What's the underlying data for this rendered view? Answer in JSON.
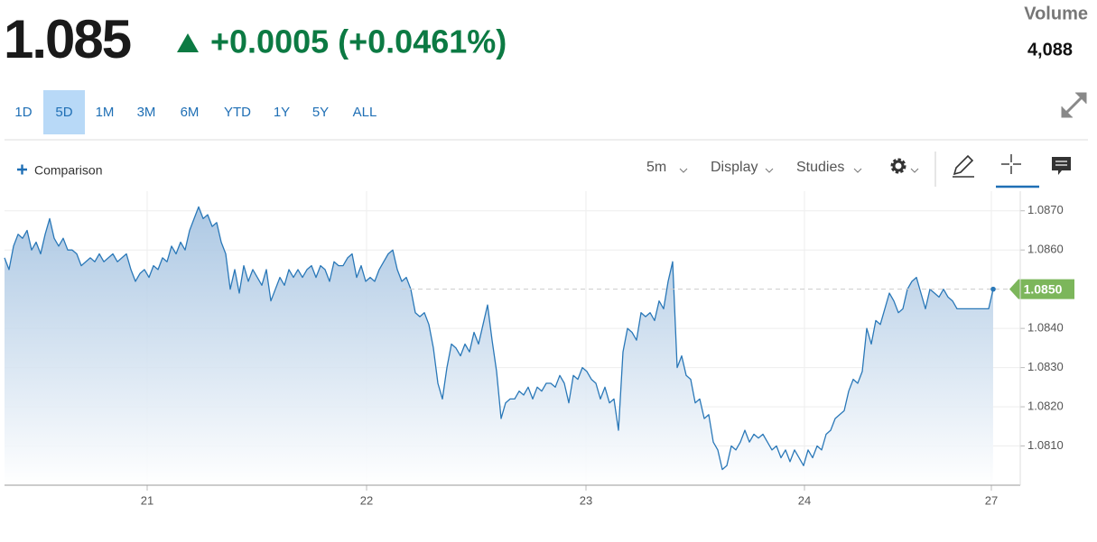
{
  "header": {
    "price": "1.085",
    "change": "+0.0005 (+0.0461%)",
    "volume_label": "Volume",
    "volume": "4,088"
  },
  "range_buttons": [
    "1D",
    "5D",
    "1M",
    "3M",
    "6M",
    "YTD",
    "1Y",
    "5Y",
    "ALL"
  ],
  "selected_range_index": 1,
  "toolbar": {
    "comparison": "Comparison",
    "interval": "5m",
    "display": "Display",
    "studies": "Studies"
  },
  "chart_data": {
    "type": "line",
    "color": "#2a78b8",
    "values": [
      1.0858,
      1.0855,
      1.0861,
      1.0864,
      1.0863,
      1.0865,
      1.086,
      1.0862,
      1.0859,
      1.0864,
      1.0868,
      1.0863,
      1.0861,
      1.0863,
      1.086,
      1.086,
      1.0859,
      1.0856,
      1.0857,
      1.0858,
      1.0857,
      1.0859,
      1.0857,
      1.0858,
      1.0859,
      1.0857,
      1.0858,
      1.0859,
      1.0855,
      1.0852,
      1.0854,
      1.0855,
      1.0853,
      1.0856,
      1.0855,
      1.0858,
      1.0857,
      1.0861,
      1.0859,
      1.0862,
      1.086,
      1.0865,
      1.0868,
      1.0871,
      1.0868,
      1.0869,
      1.0866,
      1.0867,
      1.0862,
      1.0859,
      1.085,
      1.0855,
      1.0849,
      1.0856,
      1.0852,
      1.0855,
      1.0853,
      1.0851,
      1.0855,
      1.0847,
      1.085,
      1.0853,
      1.0851,
      1.0855,
      1.0853,
      1.0855,
      1.0853,
      1.0855,
      1.0856,
      1.0853,
      1.0856,
      1.0855,
      1.0852,
      1.0857,
      1.0856,
      1.0856,
      1.0858,
      1.0859,
      1.0853,
      1.0856,
      1.0852,
      1.0853,
      1.0852,
      1.0855,
      1.0857,
      1.0859,
      1.086,
      1.0855,
      1.0852,
      1.0853,
      1.085,
      1.0844,
      1.0843,
      1.0844,
      1.0841,
      1.0835,
      1.0826,
      1.0822,
      1.083,
      1.0836,
      1.0835,
      1.0833,
      1.0836,
      1.0834,
      1.0839,
      1.0836,
      1.0841,
      1.0846,
      1.0837,
      1.0829,
      1.0817,
      1.0821,
      1.0822,
      1.0822,
      1.0824,
      1.0823,
      1.0825,
      1.0822,
      1.0825,
      1.0824,
      1.0826,
      1.0826,
      1.0825,
      1.0828,
      1.0826,
      1.0821,
      1.0828,
      1.0827,
      1.083,
      1.0829,
      1.0827,
      1.0826,
      1.0822,
      1.0825,
      1.0821,
      1.0822,
      1.0814,
      1.0834,
      1.084,
      1.0839,
      1.0837,
      1.0844,
      1.0843,
      1.0844,
      1.0842,
      1.0847,
      1.0845,
      1.0852,
      1.0857,
      1.083,
      1.0833,
      1.0828,
      1.0827,
      1.0821,
      1.0822,
      1.0817,
      1.0818,
      1.0811,
      1.0809,
      1.0804,
      1.0805,
      1.081,
      1.0809,
      1.0811,
      1.0814,
      1.0811,
      1.0813,
      1.0812,
      1.0813,
      1.0811,
      1.0809,
      1.081,
      1.0807,
      1.0809,
      1.0806,
      1.0809,
      1.0807,
      1.0805,
      1.0809,
      1.0807,
      1.081,
      1.0809,
      1.0813,
      1.0814,
      1.0817,
      1.0818,
      1.0819,
      1.0824,
      1.0827,
      1.0826,
      1.0829,
      1.084,
      1.0836,
      1.0842,
      1.0841,
      1.0845,
      1.0849,
      1.0847,
      1.0844,
      1.0845,
      1.085,
      1.0852,
      1.0853,
      1.0849,
      1.0845,
      1.085,
      1.0849,
      1.0848,
      1.085,
      1.0848,
      1.0847,
      1.0845,
      1.0845,
      1.0845,
      1.0845,
      1.0845,
      1.0845,
      1.0845,
      1.0845,
      1.085
    ],
    "xlim": [
      0,
      225
    ],
    "xticks": [
      {
        "value": 31.6,
        "label": "21"
      },
      {
        "value": 80.2,
        "label": "22"
      },
      {
        "value": 128.8,
        "label": "23"
      },
      {
        "value": 177.2,
        "label": "24"
      },
      {
        "value": 218.6,
        "label": "27"
      }
    ],
    "ylim": [
      1.08,
      1.0875
    ],
    "yticks": [
      {
        "value": 1.081,
        "label": "1.0810"
      },
      {
        "value": 1.082,
        "label": "1.0820"
      },
      {
        "value": 1.083,
        "label": "1.0830"
      },
      {
        "value": 1.084,
        "label": "1.0840"
      },
      {
        "value": 1.086,
        "label": "1.0860"
      },
      {
        "value": 1.087,
        "label": "1.0870"
      }
    ],
    "grid": true,
    "last_price": {
      "value": 1.085,
      "label": "1.0850",
      "color": "#7cb65b"
    }
  }
}
